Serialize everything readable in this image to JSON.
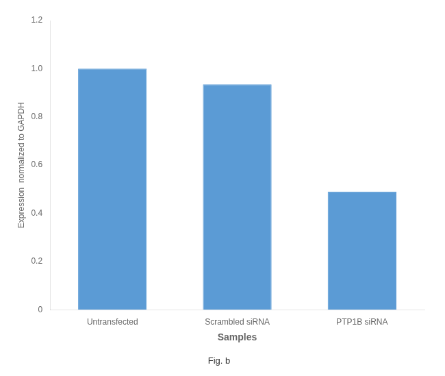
{
  "chart_data": {
    "type": "bar",
    "categories": [
      "Untransfected",
      "Scrambled siRNA",
      "PTP1B siRNA"
    ],
    "values": [
      1.0,
      0.935,
      0.49
    ],
    "color": "#5b9bd5",
    "xlabel": "Samples",
    "ylabel": "Expression  normalized to GAPDH",
    "ylim": [
      0,
      1.2
    ],
    "yticks": [
      0,
      0.2,
      0.4,
      0.6,
      0.8,
      {
        "value": 1.0,
        "label": "1.0"
      },
      1.2
    ],
    "annotations": [
      "Fig. b"
    ],
    "grid": false,
    "legend": false
  }
}
